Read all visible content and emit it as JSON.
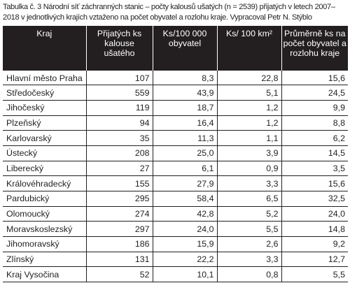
{
  "caption": "Tabulka č. 3 Národní síť záchranných stanic – počty kalousů ušatých (n = 2539) přijatých v letech 2007–2018 v jednotlivých krajích vztaženo na počet obyvatel a rozlohu kraje. Vypracoval Petr N. Stýblo",
  "headers": {
    "kraj": "Kraj",
    "prijatych": "Přijatých ks kalouse ušatého",
    "ks_obyvatel": "Ks/100 000 obyvatel",
    "ks_km2": "Ks/ 100 km²",
    "prumerne": "Průměrně ks na počet obyvatel a rozlohu kraje"
  },
  "rows": [
    {
      "kraj": "Hlavní město Praha",
      "prijatych": "107",
      "ks_obyvatel": "8,3",
      "ks_km2": "22,8",
      "prumerne": "15,6"
    },
    {
      "kraj": "Středočeský",
      "prijatych": "559",
      "ks_obyvatel": "43,9",
      "ks_km2": "5,1",
      "prumerne": "24,5"
    },
    {
      "kraj": "Jihočeský",
      "prijatych": "119",
      "ks_obyvatel": "18,7",
      "ks_km2": "1,2",
      "prumerne": "9,9"
    },
    {
      "kraj": "Plzeňský",
      "prijatych": "94",
      "ks_obyvatel": "16,4",
      "ks_km2": "1,2",
      "prumerne": "8,8"
    },
    {
      "kraj": "Karlovarský",
      "prijatych": "35",
      "ks_obyvatel": "11,3",
      "ks_km2": "1,1",
      "prumerne": "6,2"
    },
    {
      "kraj": "Ústecký",
      "prijatych": "208",
      "ks_obyvatel": "25,0",
      "ks_km2": "3,9",
      "prumerne": "14,5"
    },
    {
      "kraj": "Liberecký",
      "prijatych": "27",
      "ks_obyvatel": "6,1",
      "ks_km2": "0,9",
      "prumerne": "3,5"
    },
    {
      "kraj": "Královéhradecký",
      "prijatych": "155",
      "ks_obyvatel": "27,9",
      "ks_km2": "3,3",
      "prumerne": "15,6"
    },
    {
      "kraj": "Pardubický",
      "prijatych": "295",
      "ks_obyvatel": "58,4",
      "ks_km2": "6,5",
      "prumerne": "32,5"
    },
    {
      "kraj": "Olomoucký",
      "prijatych": "274",
      "ks_obyvatel": "42,8",
      "ks_km2": "5,2",
      "prumerne": "24,0"
    },
    {
      "kraj": "Moravskoslezský",
      "prijatych": "297",
      "ks_obyvatel": "24,0",
      "ks_km2": "5,5",
      "prumerne": "14,8"
    },
    {
      "kraj": "Jihomoravský",
      "prijatych": "186",
      "ks_obyvatel": "15,9",
      "ks_km2": "2,6",
      "prumerne": "9,2"
    },
    {
      "kraj": "Zlínský",
      "prijatych": "131",
      "ks_obyvatel": "22,2",
      "ks_km2": "3,3",
      "prumerne": "12,7"
    },
    {
      "kraj": "Kraj Vysočina",
      "prijatych": "52",
      "ks_obyvatel": "10,1",
      "ks_km2": "0,8",
      "prumerne": "5,5"
    }
  ]
}
